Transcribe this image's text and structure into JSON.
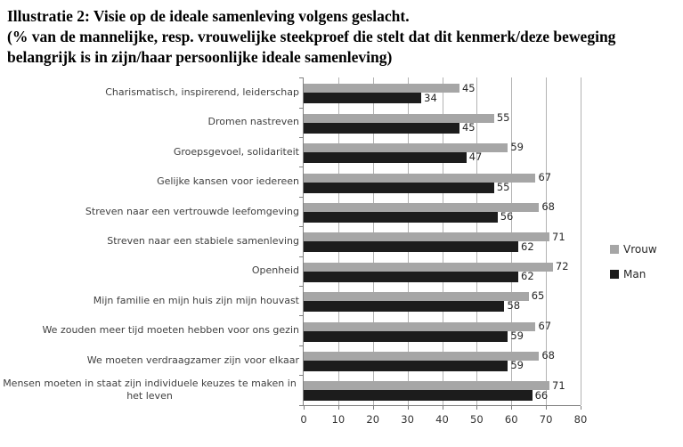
{
  "title": "Illustratie 2: Visie op de ideale samenleving volgens geslacht.",
  "subtitle": "(% van de mannelijke, resp. vrouwelijke steekproef die stelt dat dit kenmerk/deze beweging belangrijk is in zijn/haar persoonlijke ideale samenleving)",
  "colors": {
    "vrouw_bar": "#a6a6a6",
    "man_bar": "#1c1c1c",
    "gridline": "#b3b3b3",
    "axis": "#808080",
    "category_text": "#3f3f3f",
    "value_text": "#262626"
  },
  "chart_data": {
    "type": "bar",
    "orientation": "horizontal",
    "title": "Illustratie 2: Visie op de ideale samenleving volgens geslacht.",
    "subtitle": "(% van de mannelijke, resp. vrouwelijke steekproef die stelt dat dit kenmerk/deze beweging belangrijk is in zijn/haar persoonlijke ideale samenleving)",
    "categories": [
      "Charismatisch, inspirerend, leiderschap",
      "Dromen nastreven",
      "Groepsgevoel, solidariteit",
      "Gelijke kansen voor iedereen",
      "Streven naar een vertrouwde leefomgeving",
      "Streven naar een stabiele samenleving",
      "Openheid",
      "Mijn familie en mijn huis zijn mijn houvast",
      "We zouden meer tijd moeten hebben voor ons gezin",
      "We moeten verdraagzamer zijn voor elkaar",
      "Mensen moeten in staat zijn individuele keuzes te maken in het leven"
    ],
    "series": [
      {
        "name": "Vrouw",
        "color": "#a6a6a6",
        "values": [
          45,
          55,
          59,
          67,
          68,
          71,
          72,
          65,
          67,
          68,
          71
        ]
      },
      {
        "name": "Man",
        "color": "#1c1c1c",
        "values": [
          34,
          45,
          47,
          55,
          56,
          62,
          62,
          58,
          59,
          59,
          66
        ]
      }
    ],
    "xlabel": "",
    "ylabel": "",
    "xlim": [
      0,
      80
    ],
    "xticks": [
      0,
      10,
      20,
      30,
      40,
      50,
      60,
      70,
      80
    ],
    "grid": true,
    "data_labels": true,
    "legend_position": "right"
  }
}
